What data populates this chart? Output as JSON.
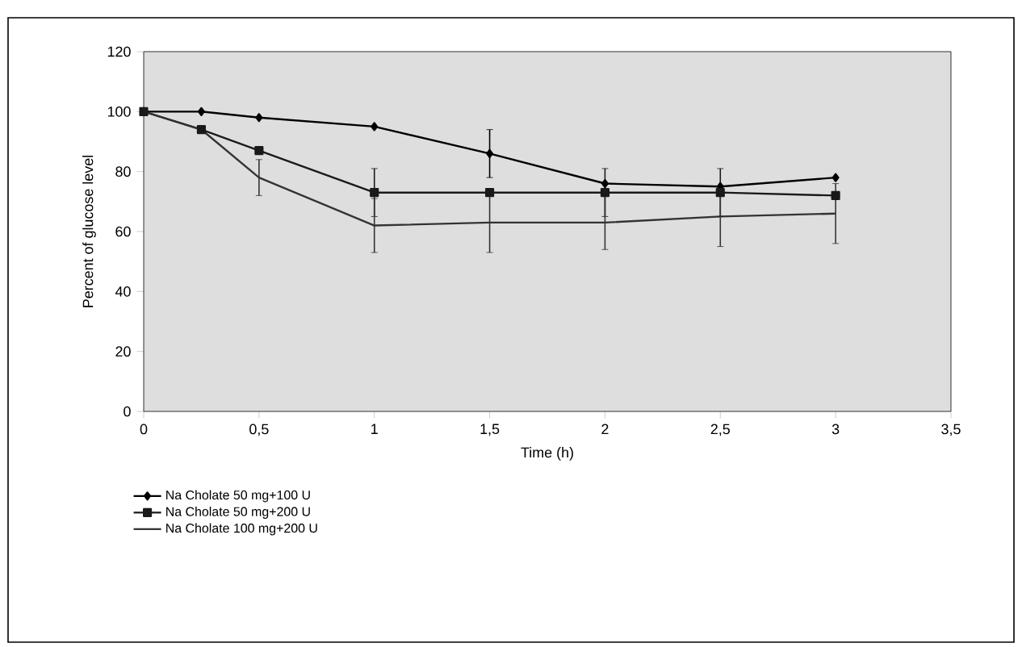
{
  "chart_data": {
    "type": "line",
    "xlabel": "Time (h)",
    "ylabel": "Percent of glucose level",
    "x": [
      0,
      0.25,
      0.5,
      1,
      1.5,
      2,
      2.5,
      3
    ],
    "series": [
      {
        "name": "Na Cholate 50 mg+100 U",
        "color": "#000000",
        "marker": "diamond",
        "values": [
          100,
          100,
          98,
          95,
          86,
          76,
          75,
          78
        ],
        "errors": [
          null,
          null,
          null,
          null,
          8,
          null,
          null,
          null
        ]
      },
      {
        "name": "Na Cholate 50 mg+200 U",
        "color": "#1a1a1a",
        "marker": "square",
        "values": [
          100,
          94,
          87,
          73,
          73,
          73,
          73,
          72
        ],
        "errors": [
          null,
          null,
          null,
          8,
          null,
          8,
          8,
          null
        ]
      },
      {
        "name": "Na Cholate 100 mg+200 U",
        "color": "#333333",
        "marker": "none",
        "values": [
          100,
          94,
          78,
          62,
          63,
          63,
          65,
          66
        ],
        "errors": [
          null,
          null,
          6,
          9,
          10,
          9,
          10,
          10
        ]
      }
    ],
    "xlim": [
      0,
      3.5
    ],
    "ylim": [
      0,
      120
    ],
    "xticks": [
      0,
      {
        "value": 0.5,
        "label": "0,5"
      },
      1,
      {
        "value": 1.5,
        "label": "1,5"
      },
      2,
      {
        "value": 2.5,
        "label": "2,5"
      },
      3,
      {
        "value": 3.5,
        "label": "3,5"
      }
    ],
    "yticks": [
      0,
      20,
      40,
      60,
      80,
      100,
      120
    ],
    "grid": false,
    "legend": "bottom left",
    "line_style": "solid"
  }
}
